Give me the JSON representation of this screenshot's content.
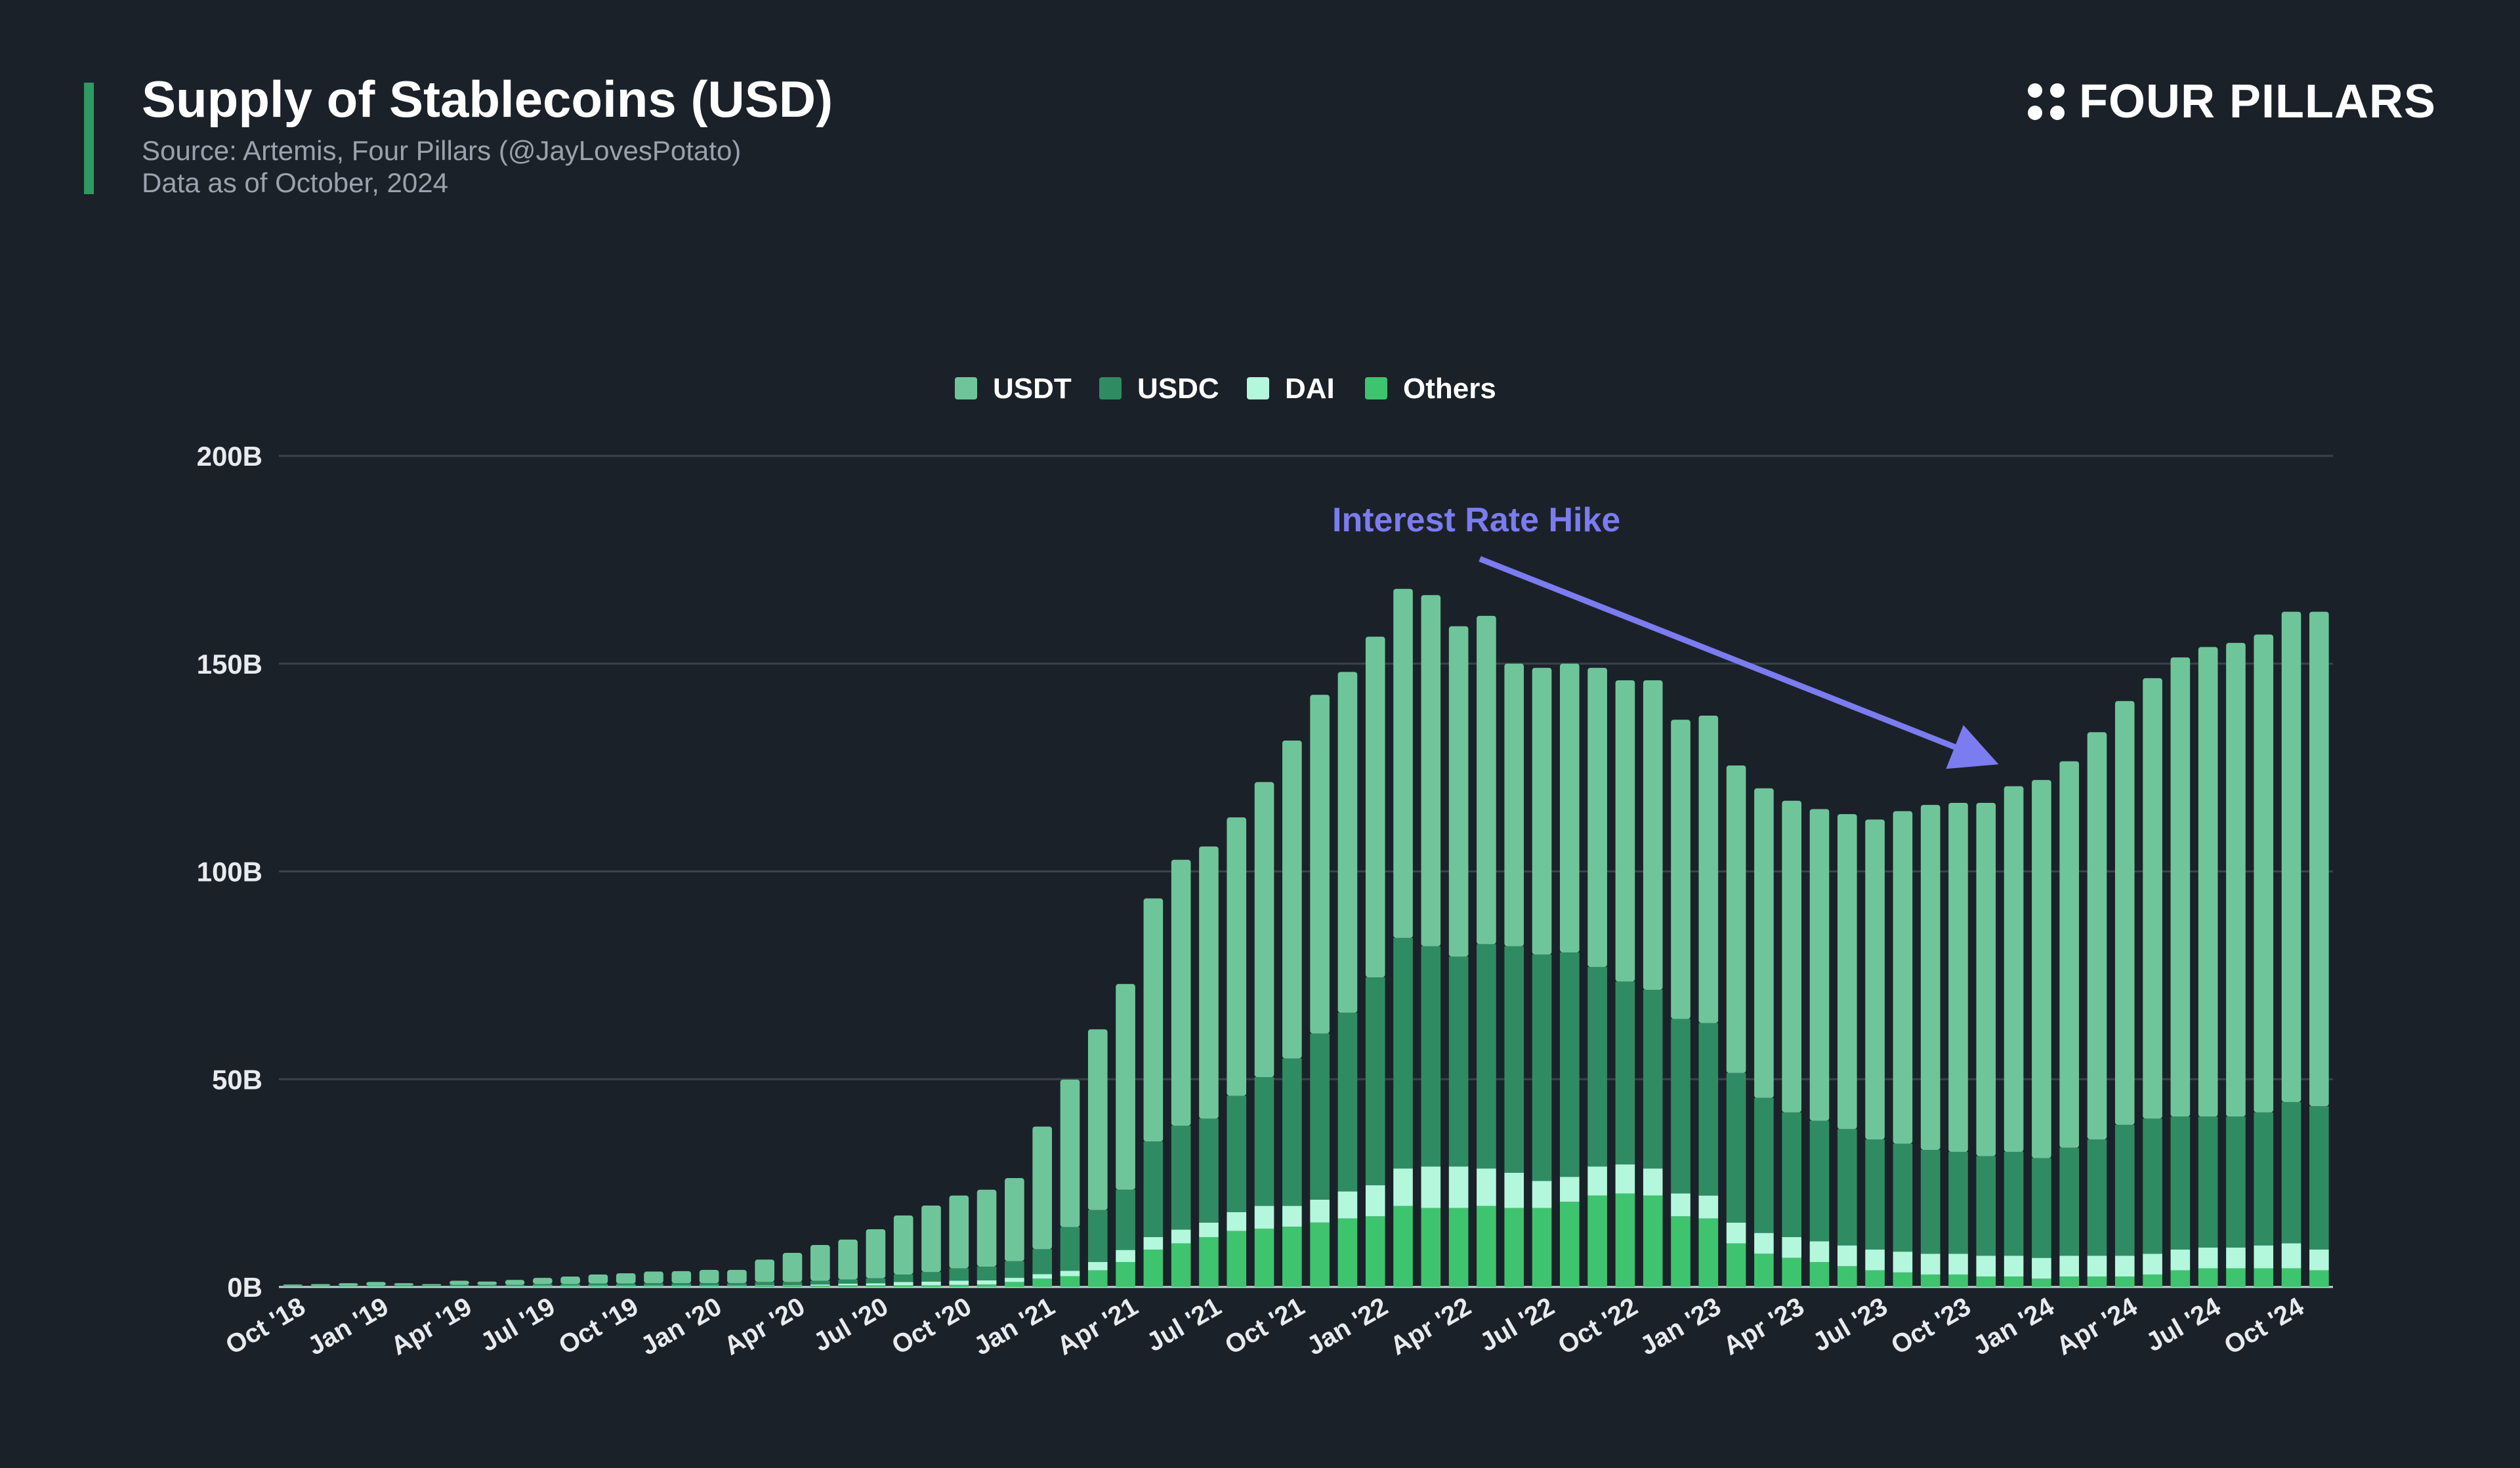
{
  "header": {
    "title": "Supply of Stablecoins (USD)",
    "source": "Source: Artemis, Four Pillars (@JayLovesPotato)",
    "date_note": "Data as of October, 2024"
  },
  "brand": {
    "name": "FOUR PILLARS",
    "icon": "four-dots-logo-icon"
  },
  "colors": {
    "background": "#1b2129",
    "accent": "#2e9a62",
    "USDT": "#6fc59a",
    "USDC": "#2f8c62",
    "DAI": "#b3f7dc",
    "Others": "#3ec46e",
    "annotation": "#7b7cf0",
    "grid": "#3b424b"
  },
  "chart_data": {
    "type": "bar",
    "stacked": true,
    "legend": [
      "USDT",
      "USDC",
      "DAI",
      "Others"
    ],
    "legend_position": "top-center",
    "ylim": [
      0,
      200
    ],
    "yticks": [
      "0B",
      "50B",
      "100B",
      "150B",
      "200B"
    ],
    "ytick_values": [
      0,
      50,
      100,
      150,
      200
    ],
    "grid": true,
    "x_tick_labels": [
      "Oct '18",
      "Jan '19",
      "Apr '19",
      "Jul '19",
      "Oct '19",
      "Jan '20",
      "Apr '20",
      "Jul '20",
      "Oct '20",
      "Jan '21",
      "Apr '21",
      "Jul '21",
      "Oct '21",
      "Jan '22",
      "Apr '22",
      "Jul '22",
      "Oct '22",
      "Jan '23",
      "Apr '23",
      "Jul '23",
      "Oct '23",
      "Jan '24",
      "Apr '24",
      "Jul '24",
      "Oct '24"
    ],
    "annotation": {
      "text": "Interest Rate Hike"
    },
    "series": [
      {
        "name": "USDT",
        "values": [
          0.3,
          0.4,
          0.6,
          0.9,
          0.5,
          0.3,
          1.0,
          0.8,
          1.2,
          1.5,
          1.8,
          2.2,
          2.5,
          2.8,
          2.9,
          3.2,
          3.2,
          5.4,
          7.0,
          8.6,
          9.6,
          11.8,
          14.2,
          16.0,
          17.5,
          18.5,
          20.0,
          29.5,
          35.5,
          43.5,
          49.5,
          58.5,
          64.0,
          65.5,
          67.0,
          71.0,
          76.5,
          81.5,
          82.0,
          82.0,
          84.0,
          84.5,
          79.5,
          79.0,
          68.0,
          69.0,
          69.5,
          72.0,
          72.5,
          74.5,
          72.0,
          74.0,
          74.0,
          74.5,
          75.0,
          75.0,
          75.8,
          77.0,
          80.0,
          83.0,
          84.0,
          85.0,
          88.0,
          91.0,
          93.0,
          98.0,
          102.0,
          106.0,
          110.5,
          113.0,
          114.0,
          115.0,
          118.0,
          119.0
        ]
      },
      {
        "name": "USDC",
        "values": [
          0.1,
          0.1,
          0.1,
          0.1,
          0.2,
          0.2,
          0.3,
          0.3,
          0.3,
          0.4,
          0.4,
          0.5,
          0.5,
          0.6,
          0.6,
          0.6,
          0.6,
          0.8,
          0.8,
          0.9,
          1.0,
          1.2,
          1.8,
          2.3,
          3.0,
          3.3,
          4.0,
          6.0,
          10.5,
          12.5,
          14.5,
          23.0,
          25.0,
          25.0,
          28.0,
          31.0,
          35.5,
          40.0,
          43.0,
          50.0,
          55.5,
          53.0,
          50.5,
          54.0,
          54.5,
          54.5,
          54.0,
          48.0,
          44.0,
          43.0,
          42.0,
          41.5,
          36.0,
          32.5,
          30.0,
          29.0,
          28.0,
          26.5,
          26.0,
          25.0,
          24.5,
          24.0,
          25.0,
          24.0,
          26.0,
          28.0,
          31.5,
          32.5,
          32.0,
          31.5,
          31.5,
          32.0,
          34.0,
          34.5
        ]
      },
      {
        "name": "DAI",
        "values": [
          0.1,
          0.1,
          0.1,
          0.1,
          0.1,
          0.1,
          0.1,
          0.1,
          0.1,
          0.1,
          0.1,
          0.1,
          0.1,
          0.1,
          0.1,
          0.1,
          0.1,
          0.1,
          0.1,
          0.3,
          0.4,
          0.5,
          0.8,
          0.9,
          1.0,
          1.0,
          1.0,
          1.1,
          1.3,
          2.0,
          2.9,
          3.0,
          3.3,
          3.5,
          4.5,
          5.5,
          5.0,
          5.5,
          6.5,
          7.5,
          9.0,
          10.0,
          10.0,
          9.0,
          8.5,
          6.5,
          6.0,
          7.0,
          7.0,
          6.5,
          5.5,
          5.5,
          5.0,
          5.0,
          5.0,
          5.0,
          5.0,
          5.0,
          5.0,
          5.0,
          5.0,
          5.0,
          5.0,
          5.0,
          5.0,
          5.0,
          5.0,
          5.0,
          5.0,
          5.0,
          5.0,
          5.5,
          6.0,
          5.0
        ]
      },
      {
        "name": "Others",
        "values": [
          0.1,
          0.1,
          0.1,
          0.1,
          0.1,
          0.1,
          0.1,
          0.1,
          0.1,
          0.2,
          0.2,
          0.2,
          0.2,
          0.2,
          0.2,
          0.2,
          0.2,
          0.3,
          0.3,
          0.3,
          0.4,
          0.4,
          0.4,
          0.4,
          0.5,
          0.6,
          1.2,
          2.0,
          2.6,
          4.0,
          6.0,
          9.0,
          10.5,
          12.0,
          13.5,
          14.0,
          14.5,
          15.5,
          16.5,
          17.0,
          19.5,
          19.0,
          19.0,
          19.5,
          19.0,
          19.0,
          20.5,
          22.0,
          22.5,
          22.0,
          17.0,
          16.5,
          10.5,
          8.0,
          7.0,
          6.0,
          5.0,
          4.0,
          3.5,
          3.0,
          3.0,
          2.5,
          2.5,
          2.0,
          2.5,
          2.5,
          2.5,
          3.0,
          4.0,
          4.5,
          4.5,
          4.5,
          4.5,
          4.0
        ]
      }
    ]
  }
}
